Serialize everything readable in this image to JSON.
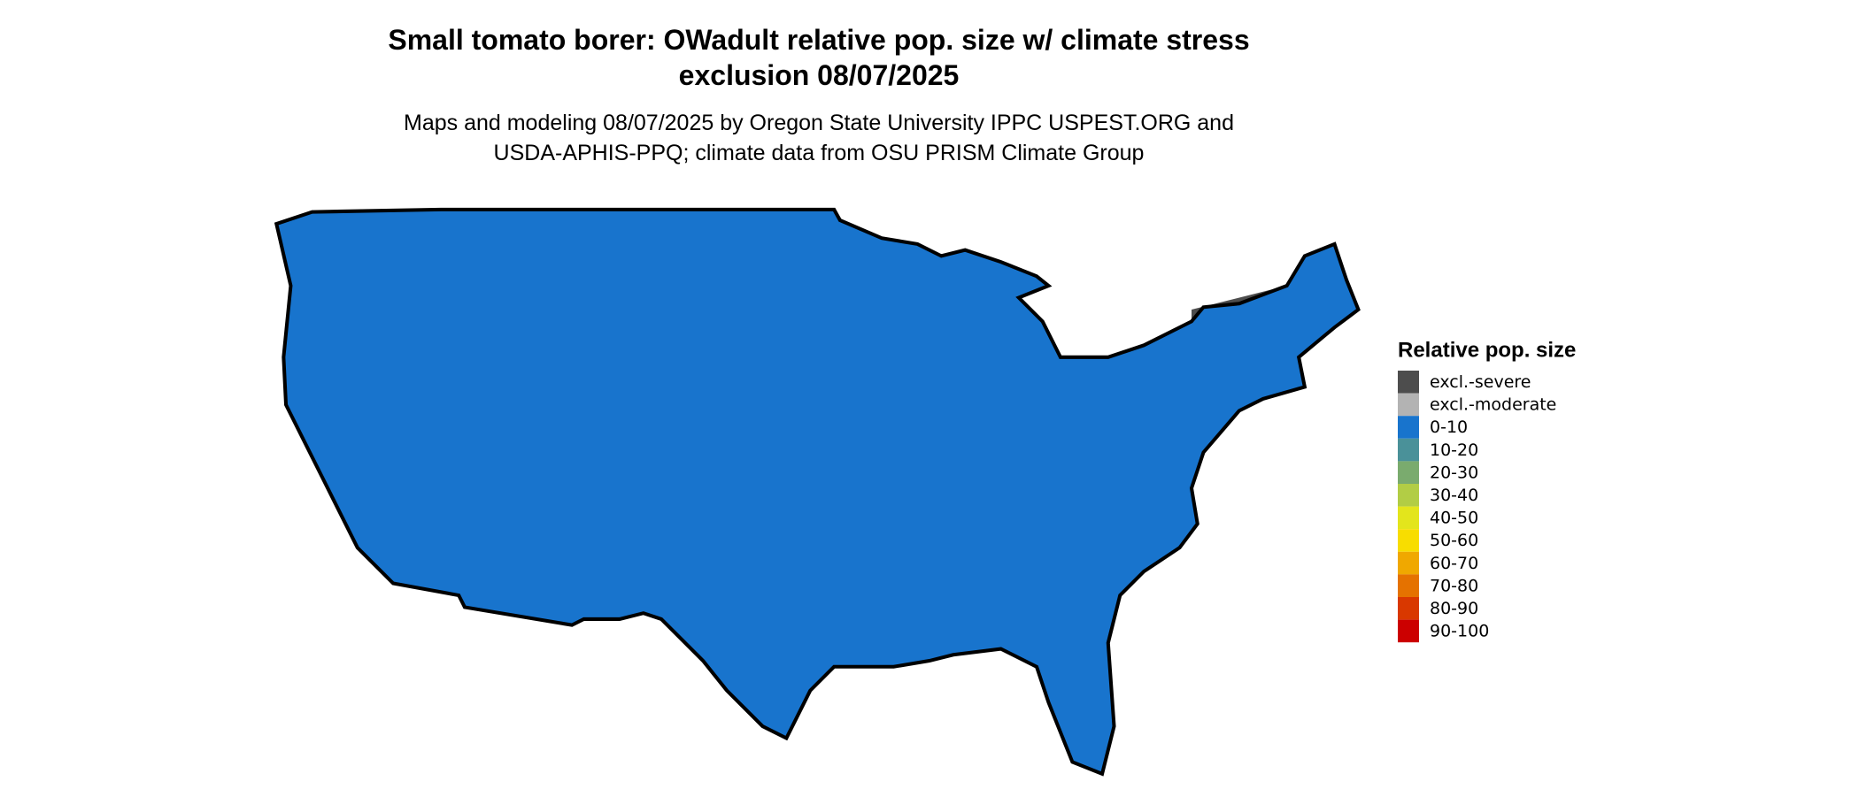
{
  "header": {
    "title": [
      "Small tomato borer: OWadult relative pop. size w/ climate stress",
      "exclusion 08/07/2025"
    ],
    "subtitle": [
      "Maps and modeling 08/07/2025 by Oregon State University IPPC USPEST.ORG and",
      "USDA-APHIS-PPQ; climate data from OSU PRISM Climate Group"
    ]
  },
  "legend": {
    "title": "Relative pop. size",
    "items": [
      {
        "label": "excl.-severe",
        "color": "#4d4d4d"
      },
      {
        "label": "excl.-moderate",
        "color": "#b3b3b3"
      },
      {
        "label": "0-10",
        "color": "#1874cd"
      },
      {
        "label": "10-20",
        "color": "#4a9199"
      },
      {
        "label": "20-30",
        "color": "#7aab6e"
      },
      {
        "label": "30-40",
        "color": "#b2cd45"
      },
      {
        "label": "40-50",
        "color": "#e3e51c"
      },
      {
        "label": "50-60",
        "color": "#f8dd00"
      },
      {
        "label": "60-70",
        "color": "#f0a800"
      },
      {
        "label": "70-80",
        "color": "#e57200"
      },
      {
        "label": "80-90",
        "color": "#d93800"
      },
      {
        "label": "90-100",
        "color": "#cc0000"
      }
    ]
  }
}
